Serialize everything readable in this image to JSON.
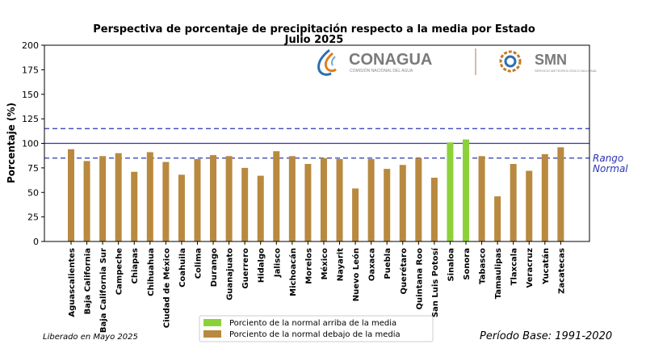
{
  "chart_data": {
    "type": "bar",
    "title": "Perspectiva de porcentaje de precipitación respecto a la media por Estado",
    "subtitle": "Julio 2025",
    "ylabel": "Porcentaje (%)",
    "xlabel": "",
    "ylim": [
      0,
      200
    ],
    "yticks": [
      0,
      25,
      50,
      75,
      100,
      125,
      150,
      175,
      200
    ],
    "categories": [
      "Aguascalientes",
      "Baja California",
      "Baja California Sur",
      "Campeche",
      "Chiapas",
      "Chihuahua",
      "Ciudad de México",
      "Coahuila",
      "Colima",
      "Durango",
      "Guanajuato",
      "Guerrero",
      "Hidalgo",
      "Jalisco",
      "Michoacán",
      "Morelos",
      "México",
      "Nayarit",
      "Nuevo León",
      "Oaxaca",
      "Puebla",
      "Querétaro",
      "Quintana Roo",
      "San Luis Potosí",
      "Sinaloa",
      "Sonora",
      "Tabasco",
      "Tamaulipas",
      "Tlaxcala",
      "Veracruz",
      "Yucatán",
      "Zacatecas"
    ],
    "values": [
      94,
      82,
      87,
      90,
      71,
      91,
      81,
      68,
      84,
      88,
      87,
      75,
      67,
      92,
      87,
      79,
      85,
      84,
      54,
      84,
      74,
      78,
      85,
      65,
      101,
      104,
      87,
      46,
      79,
      72,
      89,
      96
    ],
    "above_color": "#8dd13a",
    "below_color": "#b8893f",
    "reference_lines": {
      "mean": 100,
      "upper": 115,
      "lower": 85,
      "color": "#2b35b0"
    },
    "range_label": "Rango\nNormal",
    "legend": {
      "position": "bottom-center",
      "items": [
        {
          "label": "Porciento de la normal arriba de la media",
          "color": "#8dd13a"
        },
        {
          "label": "Porciento de la normal debajo de la media",
          "color": "#b8893f"
        }
      ]
    },
    "grid": false
  },
  "logos": {
    "conagua": {
      "name": "CONAGUA",
      "subtitle": "COMISIÓN NACIONAL DEL AGUA"
    },
    "smn": {
      "name": "SMN",
      "subtitle": "SERVICIO METEOROLÓGICO NACIONAL"
    }
  },
  "footer": {
    "released": "Liberado en Mayo 2025",
    "period": "Período Base: 1991-2020"
  }
}
